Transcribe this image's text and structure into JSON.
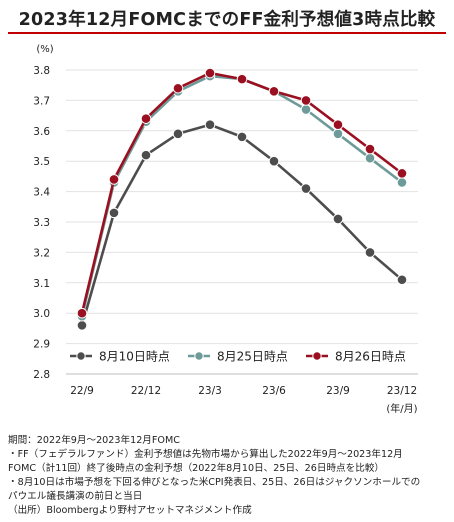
{
  "title": "2023年12月FOMCまでのFF金利予想値3時点比較",
  "chart_data": {
    "type": "line",
    "ylabel": "(%)",
    "xlabel": "(年/月)",
    "ylim": [
      2.8,
      3.8
    ],
    "yticks": [
      "2.8",
      "2.9",
      "3.0",
      "3.1",
      "3.2",
      "3.3",
      "3.4",
      "3.5",
      "3.6",
      "3.7",
      "3.8"
    ],
    "x_tick_labels": [
      "22/9",
      "22/12",
      "23/3",
      "23/6",
      "23/9",
      "23/12"
    ],
    "x": [
      "22/9",
      "22/11",
      "22/12",
      "23/2",
      "23/3",
      "23/5",
      "23/6",
      "23/7",
      "23/9",
      "23/11",
      "23/12"
    ],
    "grid": "horizontal",
    "legend_position": "inside-bottom",
    "series": [
      {
        "name": "8月10日時点",
        "color": "#4d4d4d",
        "values": [
          2.96,
          3.33,
          3.52,
          3.59,
          3.62,
          3.58,
          3.5,
          3.41,
          3.31,
          3.2,
          3.11
        ]
      },
      {
        "name": "8月25日時点",
        "color": "#6e9a99",
        "values": [
          2.99,
          3.43,
          3.63,
          3.73,
          3.78,
          3.77,
          3.73,
          3.67,
          3.59,
          3.51,
          3.43
        ]
      },
      {
        "name": "8月26日時点",
        "color": "#9a1020",
        "values": [
          3.0,
          3.44,
          3.64,
          3.74,
          3.79,
          3.77,
          3.73,
          3.7,
          3.62,
          3.54,
          3.46
        ]
      }
    ]
  },
  "notes": [
    "期間：2022年9月～2023年12月FOMC",
    "・FF（フェデラルファンド）金利予想値は先物市場から算出した2022年9月～2023年12月",
    "FOMC（計11回）終了後時点の金利予想（2022年8月10日、25日、26日時点を比較）",
    "・8月10日は市場予想を下回る伸びとなった米CPI発表日、25日、26日はジャクソンホールでの",
    "パウエル議長講演の前日と当日",
    "（出所）Bloombergより野村アセットマネジメント作成"
  ]
}
